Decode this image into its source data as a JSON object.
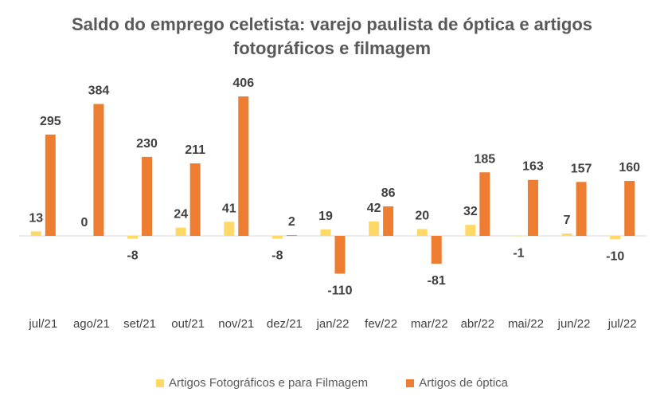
{
  "chart_data": {
    "type": "bar",
    "title_line1": "Saldo do emprego celetista: varejo paulista de óptica e artigos",
    "title_line2": "fotográficos e filmagem",
    "categories": [
      "jul/21",
      "ago/21",
      "set/21",
      "out/21",
      "nov/21",
      "dez/21",
      "jan/22",
      "fev/22",
      "mar/22",
      "abr/22",
      "mai/22",
      "jun/22",
      "jul/22"
    ],
    "series": [
      {
        "name": "Artigos Fotográficos e para Filmagem",
        "color": "#FFD966",
        "values": [
          13,
          0,
          -8,
          24,
          41,
          -8,
          19,
          42,
          20,
          32,
          -1,
          7,
          -10
        ]
      },
      {
        "name": "Artigos de óptica",
        "color": "#ED7D31",
        "values": [
          295,
          384,
          230,
          211,
          406,
          2,
          -110,
          86,
          -81,
          185,
          163,
          157,
          160
        ]
      }
    ],
    "ylim": [
      -110,
      406
    ],
    "grid": false,
    "legend_position": "bottom"
  }
}
